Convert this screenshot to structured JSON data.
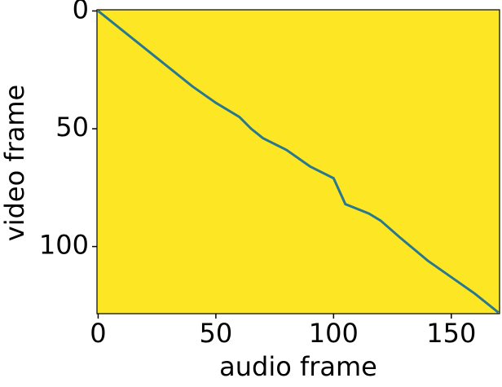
{
  "chart_data": {
    "type": "heatmap",
    "xlabel": "audio frame",
    "ylabel": "video frame",
    "xlim": [
      -0.5,
      170.5
    ],
    "ylim": [
      -0.5,
      128.5
    ],
    "xticks": [
      0,
      50,
      100,
      150
    ],
    "yticks": [
      0,
      50,
      100
    ],
    "background_color": "#fde725",
    "color": "#2a788e",
    "series": [
      {
        "x": [
          0,
          10,
          20,
          30,
          40,
          50,
          60,
          65,
          70,
          80,
          90,
          100,
          105,
          115,
          120,
          128,
          140,
          150,
          160,
          170
        ],
        "values": [
          0,
          8,
          16,
          24,
          32,
          39,
          45,
          50,
          54,
          59,
          66,
          71,
          82,
          86,
          89,
          96,
          106,
          113,
          120,
          128
        ]
      }
    ]
  }
}
